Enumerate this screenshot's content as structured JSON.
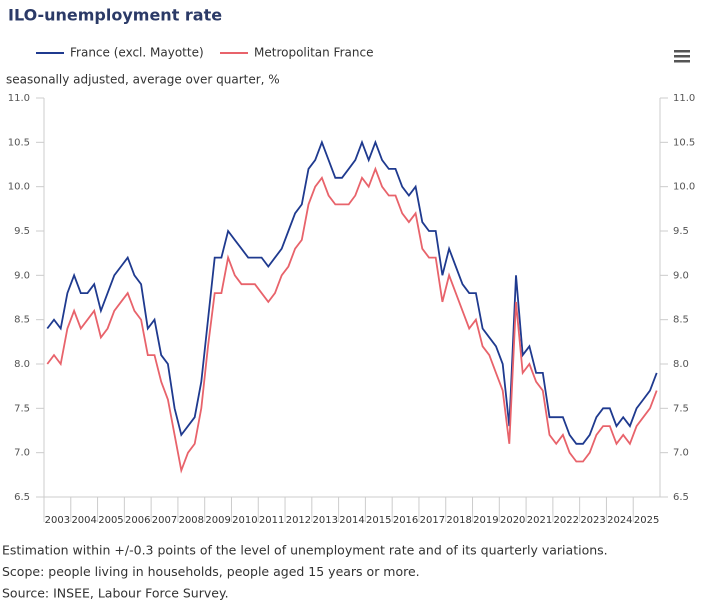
{
  "chart_data": {
    "type": "line",
    "title": "ILO-unemployment rate",
    "subtitle": "seasonally adjusted, average over quarter, %",
    "categories": [
      "2003",
      null,
      null,
      null,
      "2004",
      null,
      null,
      null,
      "2005",
      null,
      null,
      null,
      "2006",
      null,
      null,
      null,
      "2007",
      null,
      null,
      null,
      "2008",
      null,
      null,
      null,
      "2009",
      null,
      null,
      null,
      "2010",
      null,
      null,
      null,
      "2011",
      null,
      null,
      null,
      "2012",
      null,
      null,
      null,
      "2013",
      null,
      null,
      null,
      "2014",
      null,
      null,
      null,
      "2015",
      null,
      null,
      null,
      "2016",
      null,
      null,
      null,
      "2017",
      null,
      null,
      null,
      "2018",
      null,
      null,
      null,
      "2019",
      null,
      null,
      null,
      "2020",
      null,
      null,
      null,
      "2021",
      null,
      null,
      null,
      "2022",
      null,
      null,
      null,
      "2023",
      null,
      null,
      null,
      "2024",
      null,
      null,
      null,
      "2025",
      null,
      null,
      null
    ],
    "series": [
      {
        "name": "France (excl. Mayotte)",
        "color": "#1f3a8f",
        "values": [
          8.4,
          8.5,
          8.4,
          8.8,
          9.0,
          8.8,
          8.8,
          8.9,
          8.6,
          8.8,
          9.0,
          9.1,
          9.2,
          9.0,
          8.9,
          8.4,
          8.5,
          8.1,
          8.0,
          7.5,
          7.2,
          7.3,
          7.4,
          7.8,
          8.5,
          9.2,
          9.2,
          9.5,
          9.4,
          9.3,
          9.2,
          9.2,
          9.2,
          9.1,
          9.2,
          9.3,
          9.5,
          9.7,
          9.8,
          10.2,
          10.3,
          10.5,
          10.3,
          10.1,
          10.1,
          10.2,
          10.3,
          10.5,
          10.3,
          10.5,
          10.3,
          10.2,
          10.2,
          10.0,
          9.9,
          10.0,
          9.6,
          9.5,
          9.5,
          9.0,
          9.3,
          9.1,
          8.9,
          8.8,
          8.8,
          8.4,
          8.3,
          8.2,
          8.0,
          7.3,
          9.0,
          8.1,
          8.2,
          7.9,
          7.9,
          7.4,
          7.4,
          7.4,
          7.2,
          7.1,
          7.1,
          7.2,
          7.4,
          7.5,
          7.5,
          7.3,
          7.4,
          7.3,
          7.5,
          7.6,
          7.7,
          7.9
        ]
      },
      {
        "name": "Metropolitan France",
        "color": "#e8636b",
        "values": [
          8.0,
          8.1,
          8.0,
          8.4,
          8.6,
          8.4,
          8.5,
          8.6,
          8.3,
          8.4,
          8.6,
          8.7,
          8.8,
          8.6,
          8.5,
          8.1,
          8.1,
          7.8,
          7.6,
          7.2,
          6.8,
          7.0,
          7.1,
          7.5,
          8.2,
          8.8,
          8.8,
          9.2,
          9.0,
          8.9,
          8.9,
          8.9,
          8.8,
          8.7,
          8.8,
          9.0,
          9.1,
          9.3,
          9.4,
          9.8,
          10.0,
          10.1,
          9.9,
          9.8,
          9.8,
          9.8,
          9.9,
          10.1,
          10.0,
          10.2,
          10.0,
          9.9,
          9.9,
          9.7,
          9.6,
          9.7,
          9.3,
          9.2,
          9.2,
          8.7,
          9.0,
          8.8,
          8.6,
          8.4,
          8.5,
          8.2,
          8.1,
          7.9,
          7.7,
          7.1,
          8.7,
          7.9,
          8.0,
          7.8,
          7.7,
          7.2,
          7.1,
          7.2,
          7.0,
          6.9,
          6.9,
          7.0,
          7.2,
          7.3,
          7.3,
          7.1,
          7.2,
          7.1,
          7.3,
          7.4,
          7.5,
          7.7
        ]
      }
    ],
    "ylim": [
      6.5,
      11
    ],
    "yticks": [
      {
        "value": 6.5,
        "label": "6.5"
      },
      {
        "value": 7,
        "label": "7.0"
      },
      {
        "value": 7.5,
        "label": "7.5"
      },
      {
        "value": 8,
        "label": "8.0"
      },
      {
        "value": 8.5,
        "label": "8.5"
      },
      {
        "value": 9,
        "label": "9.0"
      },
      {
        "value": 9.5,
        "label": "9.5"
      },
      {
        "value": 10,
        "label": "10.0"
      },
      {
        "value": 10.5,
        "label": "10.5"
      },
      {
        "value": 11,
        "label": "11.0"
      }
    ],
    "grid": false,
    "legend": "top",
    "notes": [
      "Estimation within +/-0.3 points of the level of unemployment rate and of its quarterly variations.",
      "Scope: people living in households, people aged 15 years or more.",
      "Source: INSEE, Labour Force Survey."
    ]
  }
}
